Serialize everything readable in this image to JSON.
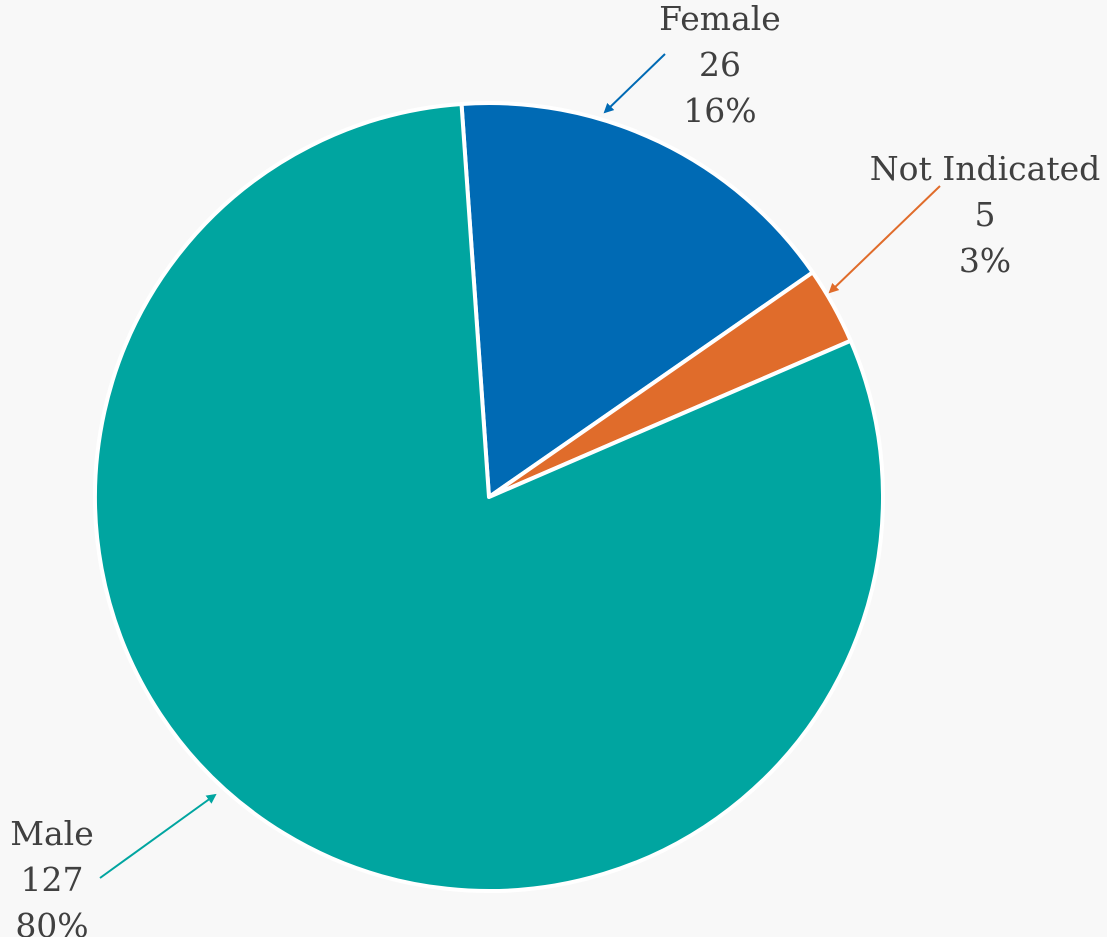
{
  "chart_data": {
    "type": "pie",
    "title": "",
    "slices": [
      {
        "name": "Female",
        "value": 26,
        "percent": "16%",
        "color": "#006ab4"
      },
      {
        "name": "Not Indicated",
        "value": 5,
        "percent": "3%",
        "color": "#e06c2b"
      },
      {
        "name": "Male",
        "value": 127,
        "percent": "80%",
        "color": "#00a5a0"
      }
    ],
    "start_angle_deg": -4,
    "direction": "clockwise",
    "legend": "none",
    "data_labels": "name, value, percent with leader arrows"
  }
}
